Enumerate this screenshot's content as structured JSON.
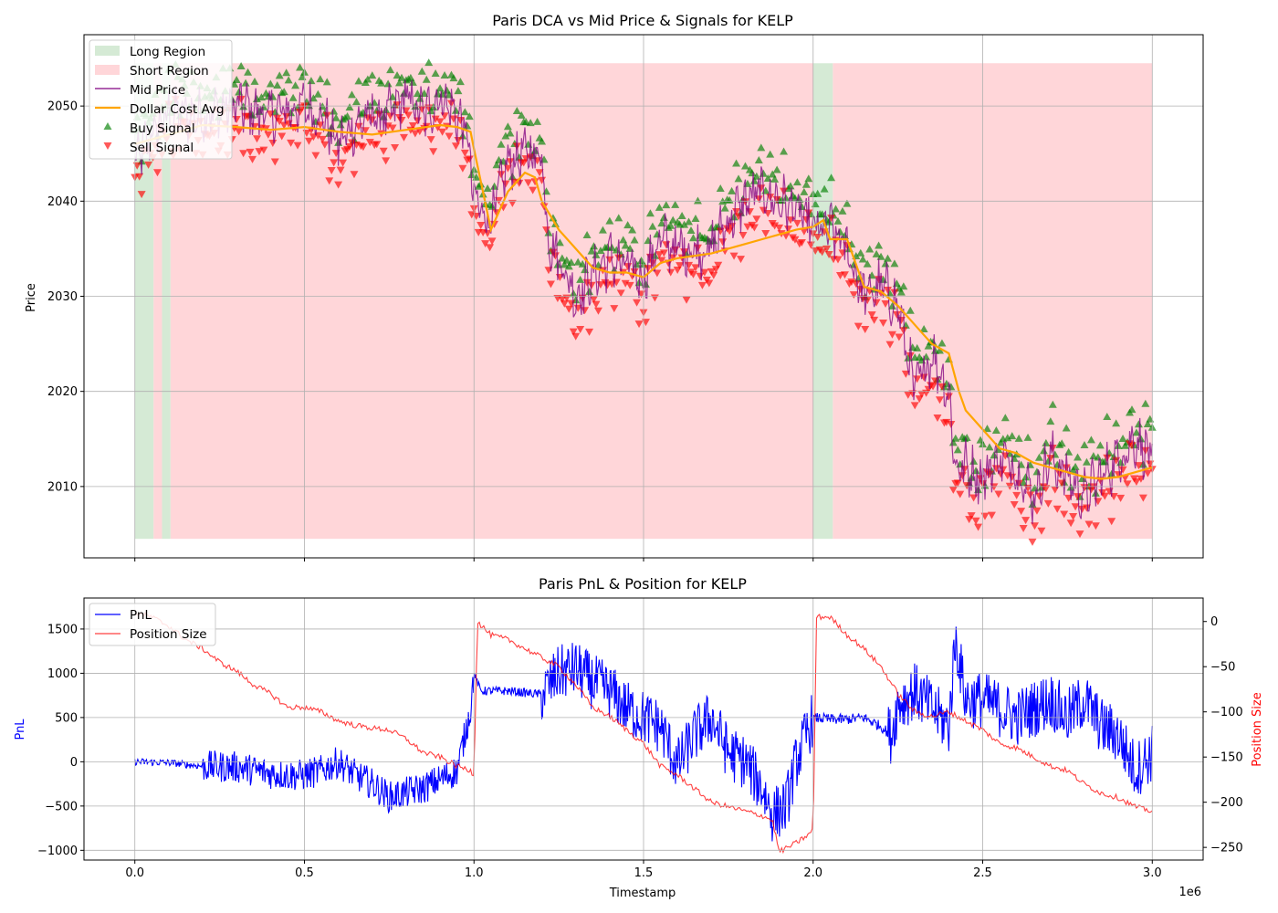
{
  "chart_data": [
    {
      "type": "line",
      "title": "Paris DCA vs Mid Price & Signals for KELP",
      "xlabel": "",
      "ylabel": "Price",
      "xlim": [
        -150000,
        3150000
      ],
      "ylim": [
        2002.5,
        2057.5
      ],
      "grid": true,
      "legend_position": "top-left",
      "x_ticks": [
        0,
        500000,
        1000000,
        1500000,
        2000000,
        2500000,
        3000000
      ],
      "y_ticks": [
        2010,
        2020,
        2030,
        2040,
        2050
      ],
      "y_tick_labels": [
        "2010",
        "2020",
        "2030",
        "2040",
        "2050"
      ],
      "legend": [
        {
          "name": "Long Region",
          "kind": "patch",
          "color": "#d5ead5"
        },
        {
          "name": "Short Region",
          "kind": "patch",
          "color": "#ffd6d9"
        },
        {
          "name": "Mid Price",
          "kind": "line",
          "color": "#800080"
        },
        {
          "name": "Dollar Cost Avg",
          "kind": "line",
          "color": "#ffa500"
        },
        {
          "name": "Buy Signal",
          "kind": "up-triangle",
          "color": "#008000"
        },
        {
          "name": "Sell Signal",
          "kind": "down-triangle",
          "color": "#ff0000"
        }
      ],
      "regions": {
        "y_range": [
          2004.5,
          2054.5
        ],
        "long": [
          [
            0,
            55000
          ],
          [
            80000,
            105000
          ],
          [
            2000000,
            2058000
          ]
        ],
        "short": [
          [
            55000,
            80000
          ],
          [
            105000,
            2000000
          ],
          [
            2058000,
            3000000
          ]
        ]
      },
      "series": [
        {
          "name": "Mid Price",
          "color": "#800080",
          "x": [
            0,
            50000,
            100000,
            200000,
            300000,
            400000,
            500000,
            550000,
            600000,
            650000,
            700000,
            750000,
            800000,
            850000,
            900000,
            950000,
            980000,
            1000000,
            1050000,
            1100000,
            1150000,
            1200000,
            1220000,
            1250000,
            1300000,
            1350000,
            1400000,
            1450000,
            1500000,
            1550000,
            1600000,
            1700000,
            1750000,
            1800000,
            1850000,
            1900000,
            1950000,
            2000000,
            2050000,
            2100000,
            2150000,
            2200000,
            2250000,
            2300000,
            2350000,
            2400000,
            2420000,
            2450000,
            2500000,
            2550000,
            2600000,
            2650000,
            2700000,
            2750000,
            2800000,
            2850000,
            2900000,
            2950000,
            3000000
          ],
          "y": [
            2044,
            2047,
            2049,
            2049,
            2050,
            2049,
            2050,
            2049,
            2046,
            2048,
            2049,
            2049,
            2051,
            2049,
            2051,
            2049,
            2047,
            2040,
            2038,
            2044,
            2045,
            2045,
            2036,
            2034,
            2030,
            2032,
            2034,
            2033,
            2032,
            2036,
            2035,
            2035,
            2038,
            2040,
            2041,
            2040,
            2039,
            2037,
            2037,
            2035,
            2030,
            2031,
            2029,
            2020,
            2024,
            2020,
            2012,
            2012,
            2011,
            2013,
            2012,
            2009,
            2013,
            2011,
            2009,
            2011,
            2013,
            2015,
            2013
          ]
        },
        {
          "name": "Dollar Cost Avg",
          "color": "#ffa500",
          "x": [
            0,
            100000,
            150000,
            200000,
            300000,
            400000,
            500000,
            600000,
            700000,
            800000,
            900000,
            950000,
            990000,
            1000000,
            1050000,
            1100000,
            1150000,
            1180000,
            1200000,
            1250000,
            1300000,
            1350000,
            1400000,
            1450000,
            1500000,
            1550000,
            1600000,
            1700000,
            1800000,
            1850000,
            1900000,
            1950000,
            2000000,
            2030000,
            2050000,
            2100000,
            2150000,
            2200000,
            2250000,
            2300000,
            2350000,
            2400000,
            2430000,
            2450000,
            2500000,
            2550000,
            2600000,
            2650000,
            2700000,
            2750000,
            2800000,
            2850000,
            2900000,
            2950000,
            3000000
          ],
          "y": [
            2046,
            2047,
            2047.5,
            2048,
            2047.8,
            2047.5,
            2047.8,
            2047.3,
            2047,
            2047.5,
            2048,
            2047.8,
            2047.3,
            2045.5,
            2037,
            2041,
            2043,
            2042.5,
            2040,
            2037,
            2035,
            2033,
            2032.5,
            2032.5,
            2032,
            2033.5,
            2034,
            2034.5,
            2035.5,
            2036,
            2036.5,
            2037,
            2037.3,
            2038,
            2036,
            2036,
            2031,
            2030.5,
            2029,
            2027,
            2025,
            2024,
            2020,
            2018,
            2016,
            2014,
            2013.5,
            2012.5,
            2012,
            2011.5,
            2011,
            2010.8,
            2011,
            2011.5,
            2012
          ]
        }
      ],
      "signals": "Dense green up-triangle (buy) markers above and red down-triangle (sell) markers below the mid price across the full range 0 to 3000000"
    },
    {
      "type": "line",
      "title": "Paris PnL & Position for KELP",
      "xlabel": "Timestamp",
      "ylabel": "PnL",
      "ylabel_right": "Position Size",
      "x_offset_label": "1e6",
      "xlim": [
        -150000,
        3150000
      ],
      "ylim": [
        -1110,
        1850
      ],
      "ylim_right": [
        -264,
        26
      ],
      "grid": true,
      "legend_position": "top-left",
      "x_ticks": [
        0,
        500000,
        1000000,
        1500000,
        2000000,
        2500000,
        3000000
      ],
      "x_tick_labels": [
        "0.0",
        "0.5",
        "1.0",
        "1.5",
        "2.0",
        "2.5",
        "3.0"
      ],
      "y_ticks": [
        -1000,
        -500,
        0,
        500,
        1000,
        1500
      ],
      "y_tick_labels": [
        "−1000",
        "−500",
        "0",
        "500",
        "1000",
        "1500"
      ],
      "y_ticks_right": [
        0,
        -50,
        -100,
        -150,
        -200,
        -250
      ],
      "y_tick_labels_right": [
        "0",
        "−50",
        "−100",
        "−150",
        "−200",
        "−250"
      ],
      "legend": [
        {
          "name": "PnL",
          "kind": "line",
          "color": "#0000ff"
        },
        {
          "name": "Position Size",
          "kind": "line",
          "color": "#ff0000"
        }
      ],
      "series": [
        {
          "name": "PnL",
          "axis": "left",
          "color": "#0000ff",
          "x": [
            0,
            100000,
            200000,
            300000,
            400000,
            450000,
            500000,
            550000,
            600000,
            650000,
            700000,
            750000,
            800000,
            850000,
            900000,
            950000,
            990000,
            1000000,
            1020000,
            1100000,
            1200000,
            1250000,
            1300000,
            1350000,
            1400000,
            1450000,
            1500000,
            1550000,
            1600000,
            1650000,
            1700000,
            1750000,
            1800000,
            1850000,
            1880000,
            1920000,
            1950000,
            2000000,
            2050000,
            2100000,
            2150000,
            2200000,
            2230000,
            2250000,
            2300000,
            2350000,
            2400000,
            2420000,
            2450000,
            2500000,
            2550000,
            2600000,
            2650000,
            2700000,
            2750000,
            2800000,
            2850000,
            2900000,
            2950000,
            3000000
          ],
          "y": [
            0,
            -10,
            -50,
            -60,
            -130,
            -150,
            -150,
            -100,
            0,
            -150,
            -250,
            -400,
            -350,
            -300,
            -200,
            -100,
            600,
            1000,
            800,
            800,
            760,
            1000,
            1050,
            900,
            800,
            600,
            500,
            400,
            -50,
            300,
            500,
            100,
            0,
            -300,
            -600,
            -500,
            0,
            500,
            480,
            480,
            500,
            400,
            300,
            650,
            800,
            600,
            400,
            1400,
            700,
            700,
            600,
            500,
            600,
            700,
            500,
            700,
            400,
            300,
            -100,
            100
          ]
        },
        {
          "name": "Position Size",
          "axis": "right",
          "color": "#ff0000",
          "x": [
            0,
            50000,
            100000,
            150000,
            200000,
            250000,
            300000,
            350000,
            400000,
            450000,
            500000,
            550000,
            600000,
            650000,
            700000,
            750000,
            800000,
            850000,
            900000,
            950000,
            990000,
            1000000,
            1010000,
            1050000,
            1100000,
            1150000,
            1200000,
            1250000,
            1300000,
            1350000,
            1400000,
            1450000,
            1500000,
            1550000,
            1600000,
            1650000,
            1700000,
            1750000,
            1800000,
            1850000,
            1880000,
            1900000,
            1950000,
            1990000,
            2000000,
            2010000,
            2050000,
            2100000,
            2150000,
            2200000,
            2250000,
            2300000,
            2350000,
            2400000,
            2450000,
            2500000,
            2550000,
            2600000,
            2650000,
            2700000,
            2750000,
            2800000,
            2850000,
            2900000,
            2950000,
            3000000
          ],
          "y": [
            10,
            5,
            -5,
            -20,
            -30,
            -45,
            -55,
            -70,
            -80,
            -95,
            -95,
            -100,
            -110,
            -115,
            -118,
            -120,
            -130,
            -145,
            -150,
            -160,
            -165,
            -170,
            0,
            -15,
            -20,
            -30,
            -40,
            -50,
            -70,
            -95,
            -105,
            -120,
            -135,
            -160,
            -170,
            -185,
            -200,
            -205,
            -210,
            -215,
            -220,
            -255,
            -245,
            -235,
            -230,
            5,
            5,
            -15,
            -30,
            -50,
            -80,
            -100,
            -105,
            -100,
            -110,
            -120,
            -135,
            -140,
            -150,
            -160,
            -165,
            -180,
            -190,
            -195,
            -205,
            -210
          ]
        }
      ]
    }
  ]
}
